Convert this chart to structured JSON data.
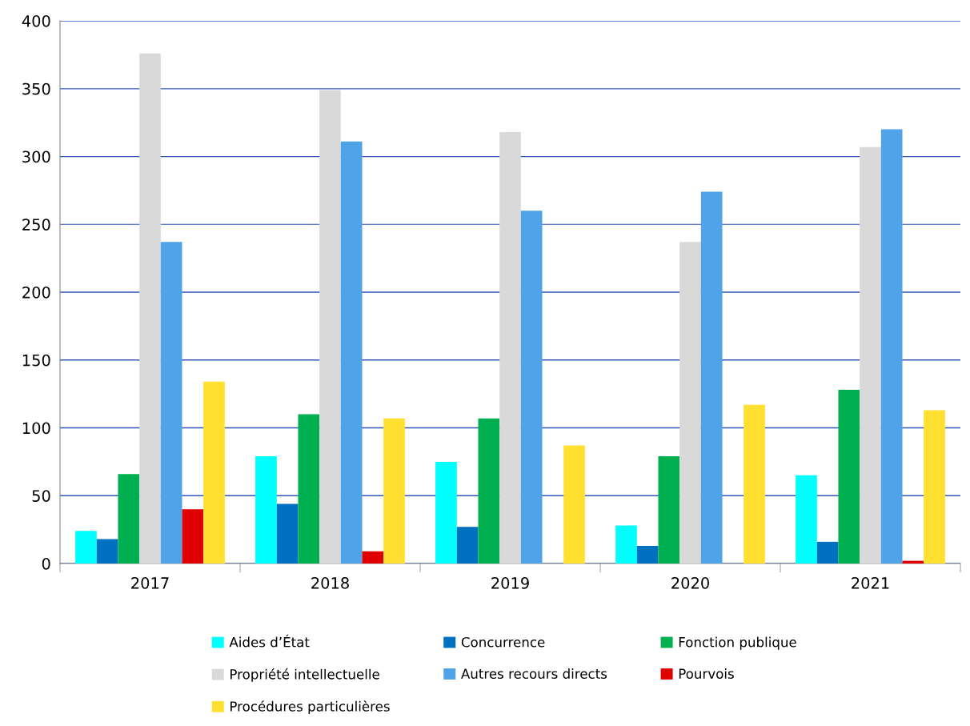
{
  "chart_data": {
    "type": "bar",
    "categories": [
      "2017",
      "2018",
      "2019",
      "2020",
      "2021"
    ],
    "series": [
      {
        "name": "Aides d’État",
        "color": "#00ffff",
        "values": [
          24,
          79,
          75,
          28,
          65
        ]
      },
      {
        "name": "Concurrence",
        "color": "#0070c0",
        "values": [
          18,
          44,
          27,
          13,
          16
        ]
      },
      {
        "name": "Fonction publique",
        "color": "#00b050",
        "values": [
          66,
          110,
          107,
          79,
          128
        ]
      },
      {
        "name": "Propriété intellectuelle",
        "color": "#d9d9d9",
        "values": [
          376,
          349,
          318,
          237,
          307
        ]
      },
      {
        "name": "Autres recours directs",
        "color": "#4fa3e8",
        "values": [
          237,
          311,
          260,
          274,
          320
        ]
      },
      {
        "name": "Pourvois",
        "color": "#e00000",
        "values": [
          40,
          9,
          0,
          0,
          2
        ]
      },
      {
        "name": "Procédures particulières",
        "color": "#ffe030",
        "values": [
          134,
          107,
          87,
          117,
          113
        ]
      }
    ],
    "ylim": [
      0,
      400
    ],
    "yticks": [
      0,
      50,
      100,
      150,
      200,
      250,
      300,
      350,
      400
    ],
    "grid": "y",
    "legend": "bottom"
  }
}
